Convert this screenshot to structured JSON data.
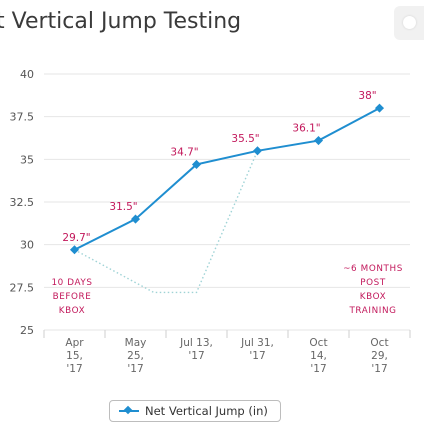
{
  "title": "t Vertical Jump Testing",
  "colors": {
    "series": "#1f8ed0",
    "annotation": "#c2185b",
    "grid": "#e6e6e6",
    "dotted": "#9fd3d6"
  },
  "chart_data": {
    "type": "line",
    "title": "t Vertical Jump Testing",
    "categories": [
      [
        "Apr",
        "15,",
        "'17"
      ],
      [
        "May",
        "25,",
        "'17"
      ],
      [
        "Jul 13,",
        "'17"
      ],
      [
        "Jul 31,",
        "'17"
      ],
      [
        "Oct",
        "14,",
        "'17"
      ],
      [
        "Oct",
        "29,",
        "'17"
      ]
    ],
    "series": [
      {
        "name": "Net Vertical Jump (in)",
        "values": [
          29.7,
          31.5,
          34.7,
          35.5,
          36.1,
          38
        ]
      }
    ],
    "data_labels": [
      "29.7\"",
      "31.5\"",
      "34.7\"",
      "35.5\"",
      "36.1\"",
      "38\""
    ],
    "yticks": [
      "40",
      "37.5",
      "35",
      "32.5",
      "30",
      "27.5",
      "25"
    ],
    "ylim": [
      25,
      40
    ],
    "grid": true,
    "legend": "bottom",
    "dotted_guide": {
      "from_category": 0,
      "to_category": 3,
      "via_values": [
        27.2,
        27.2
      ]
    },
    "annotations": [
      {
        "lines": [
          "10 days",
          "before",
          "kBox"
        ]
      },
      {
        "lines": [
          "~6 months",
          "post",
          "kBox",
          "training"
        ]
      }
    ]
  },
  "legend": {
    "label": "Net Vertical Jump (in)"
  }
}
